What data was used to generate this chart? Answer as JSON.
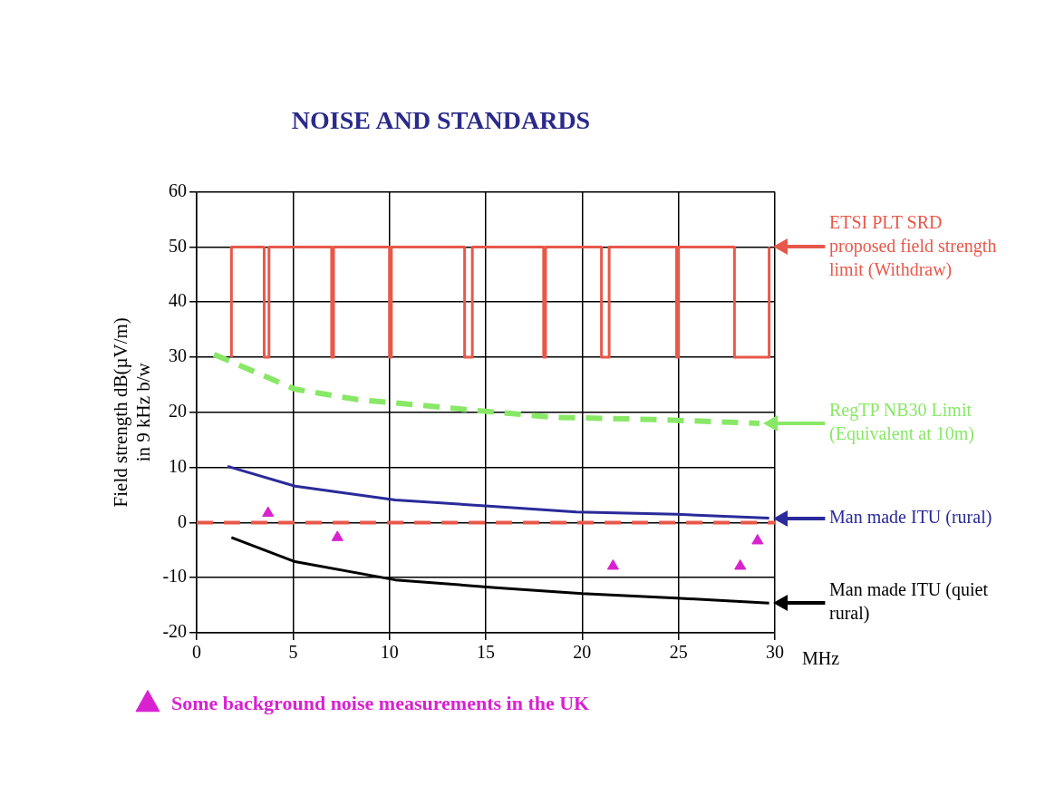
{
  "chart_data": {
    "type": "line",
    "title": "NOISE AND STANDARDS",
    "xlabel": "MHz",
    "ylabel": "Field strength dB(µV/m)\nin 9 kHz b/w",
    "xlim": [
      0,
      30
    ],
    "xticks": [
      0,
      5,
      10,
      15,
      20,
      25,
      30
    ],
    "ylim": [
      -20,
      60
    ],
    "yticks": [
      -20,
      -10,
      0,
      10,
      20,
      30,
      40,
      50,
      60
    ],
    "grid": true,
    "legend": "bottom",
    "ref_lines": [
      {
        "axis": "y",
        "value": 0,
        "color": "#e8584a",
        "line_style": "dashed"
      }
    ],
    "series": [
      {
        "name": "ETSI PLT SRD proposed field strength limit (Withdraw)",
        "color": "#e8584a",
        "line_style": "solid",
        "marker": "none",
        "x": [
          1.8,
          1.8,
          3.5,
          3.5,
          3.75,
          3.75,
          7.0,
          7.0,
          7.1,
          7.1,
          10.0,
          10.0,
          10.1,
          10.1,
          13.9,
          13.9,
          14.3,
          14.3,
          18.0,
          18.0,
          18.1,
          18.1,
          21.0,
          21.0,
          21.4,
          21.4,
          24.9,
          24.9,
          25.0,
          25.0,
          27.9,
          27.9,
          29.7,
          29.7
        ],
        "values": [
          30,
          50,
          50,
          30,
          30,
          50,
          50,
          30,
          30,
          50,
          50,
          30,
          30,
          50,
          50,
          30,
          30,
          50,
          50,
          30,
          30,
          50,
          50,
          30,
          30,
          50,
          50,
          30,
          30,
          50,
          50,
          30,
          30,
          50
        ]
      },
      {
        "name": "RegTP NB30 Limit (Equivalent at 10m)",
        "color": "#88e866",
        "line_style": "dashed",
        "marker": "none",
        "x": [
          0.9,
          5.1,
          8.35,
          10.3,
          14.3,
          18.5,
          23.7,
          29.2
        ],
        "values": [
          30.5,
          24.2,
          22.3,
          21.7,
          20.4,
          19.1,
          18.7,
          18
        ]
      },
      {
        "name": "Man made ITU (rural)",
        "color": "#2a2a9a",
        "line_style": "solid",
        "marker": "none",
        "x": [
          1.6,
          5.1,
          10.3,
          15.5,
          19.7,
          24.9,
          29.7
        ],
        "values": [
          10.2,
          6.6,
          4.1,
          2.9,
          1.9,
          1.5,
          0.8
        ]
      },
      {
        "name": "Man made ITU (quiet rural)",
        "color": "#000000",
        "line_style": "solid",
        "marker": "none",
        "x": [
          1.8,
          5.1,
          10.3,
          15.5,
          20,
          24.9,
          29.7
        ],
        "values": [
          -2.7,
          -7.1,
          -10.4,
          -11.8,
          -12.9,
          -13.7,
          -14.6
        ]
      },
      {
        "name": "Some background noise measurements in the UK",
        "type": "scatter",
        "color": "#d822d0",
        "marker": "triangle",
        "x": [
          3.7,
          7.3,
          21.6,
          28.2,
          29.1
        ],
        "values": [
          1.7,
          -2.7,
          -7.9,
          -7.9,
          -3.3
        ]
      }
    ]
  }
}
